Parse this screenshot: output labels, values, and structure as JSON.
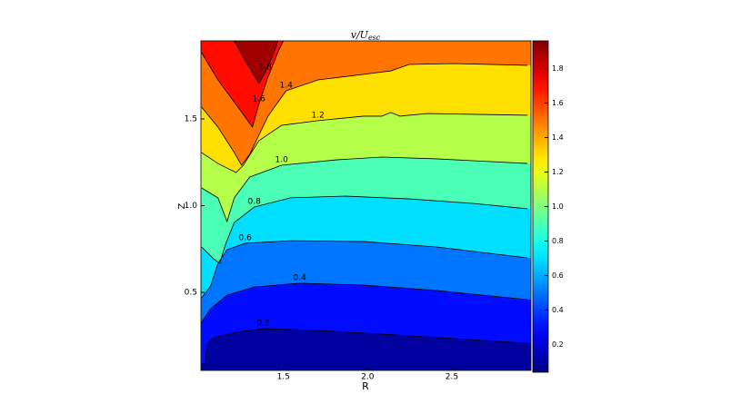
{
  "chart_data": {
    "type": "contour",
    "title": "v/U",
    "title_sub": "esc",
    "xlabel": "R",
    "ylabel": "Z",
    "xlim": [
      1.01,
      2.97
    ],
    "ylim": [
      0.05,
      1.95
    ],
    "xticks": [
      1.5,
      {
        "value": 2.0,
        "label": "2.0"
      },
      2.5
    ],
    "yticks": [
      0.5,
      {
        "value": 1.0,
        "label": "1.0"
      },
      1.5
    ],
    "clim": [
      0.04,
      1.96
    ],
    "cticks": [
      0.2,
      0.4,
      0.6,
      0.8,
      {
        "value": 1.0,
        "label": "1.0"
      },
      1.2,
      1.4,
      1.6,
      1.8
    ],
    "colormap": "jet",
    "contours": [
      {
        "level": 0.2,
        "x": [
          1.035,
          1.046,
          1.084,
          1.219,
          1.381,
          1.705,
          2.084,
          2.516,
          2.949
        ],
        "y": [
          0.092,
          0.196,
          0.238,
          0.27,
          0.291,
          0.28,
          0.259,
          0.233,
          0.207
        ]
      },
      {
        "level": 0.4,
        "x": [
          1.014,
          1.068,
          1.165,
          1.327,
          1.597,
          1.976,
          2.408,
          2.949
        ],
        "y": [
          0.327,
          0.406,
          0.484,
          0.531,
          0.553,
          0.542,
          0.511,
          0.458
        ]
      },
      {
        "level": 0.6,
        "x": [
          1.014,
          1.068,
          1.111,
          1.165,
          1.273,
          1.543,
          1.976,
          2.408,
          2.949
        ],
        "y": [
          0.469,
          0.537,
          0.668,
          0.746,
          0.783,
          0.798,
          0.793,
          0.762,
          0.699
        ]
      },
      {
        "level": 0.8,
        "x": [
          1.014,
          1.084,
          1.122,
          1.154,
          1.208,
          1.327,
          1.543,
          1.868,
          2.246,
          2.624,
          2.949
        ],
        "y": [
          0.762,
          0.694,
          0.668,
          0.772,
          0.903,
          0.992,
          1.045,
          1.055,
          1.039,
          1.013,
          0.982
        ]
      },
      {
        "level": {
          "value": 1.0,
          "label": "1.0"
        },
        "x": [
          1.014,
          1.111,
          1.165,
          1.208,
          1.3,
          1.489,
          1.814,
          2.084,
          2.408,
          2.949
        ],
        "y": [
          1.102,
          1.045,
          0.908,
          1.045,
          1.165,
          1.233,
          1.264,
          1.28,
          1.27,
          1.243
        ]
      },
      {
        "level": 1.2,
        "x": [
          1.014,
          1.111,
          1.219,
          1.262,
          1.354,
          1.489,
          1.705,
          1.976,
          2.084,
          2.138,
          2.192,
          2.354,
          2.949
        ],
        "y": [
          1.306,
          1.243,
          1.191,
          1.233,
          1.374,
          1.463,
          1.49,
          1.516,
          1.516,
          1.537,
          1.516,
          1.531,
          1.521
        ]
      },
      {
        "level": 1.4,
        "x": [
          1.014,
          1.111,
          1.208,
          1.251,
          1.3,
          1.408,
          1.516,
          1.705,
          1.976,
          2.138,
          2.246,
          2.516,
          2.949
        ],
        "y": [
          1.568,
          1.453,
          1.306,
          1.233,
          1.296,
          1.516,
          1.662,
          1.725,
          1.757,
          1.777,
          1.814,
          1.819,
          1.809
        ]
      },
      {
        "level": 1.6,
        "x": [
          1.014,
          1.111,
          1.23,
          1.316,
          1.354,
          1.408,
          1.473,
          1.5
        ],
        "y": [
          1.882,
          1.725,
          1.568,
          1.453,
          1.584,
          1.741,
          1.898,
          1.95
        ]
      },
      {
        "level": 1.8,
        "x": [
          1.208,
          1.284,
          1.354,
          1.392,
          1.435,
          1.468
        ],
        "y": [
          1.95,
          1.819,
          1.704,
          1.767,
          1.861,
          1.95
        ]
      }
    ]
  }
}
